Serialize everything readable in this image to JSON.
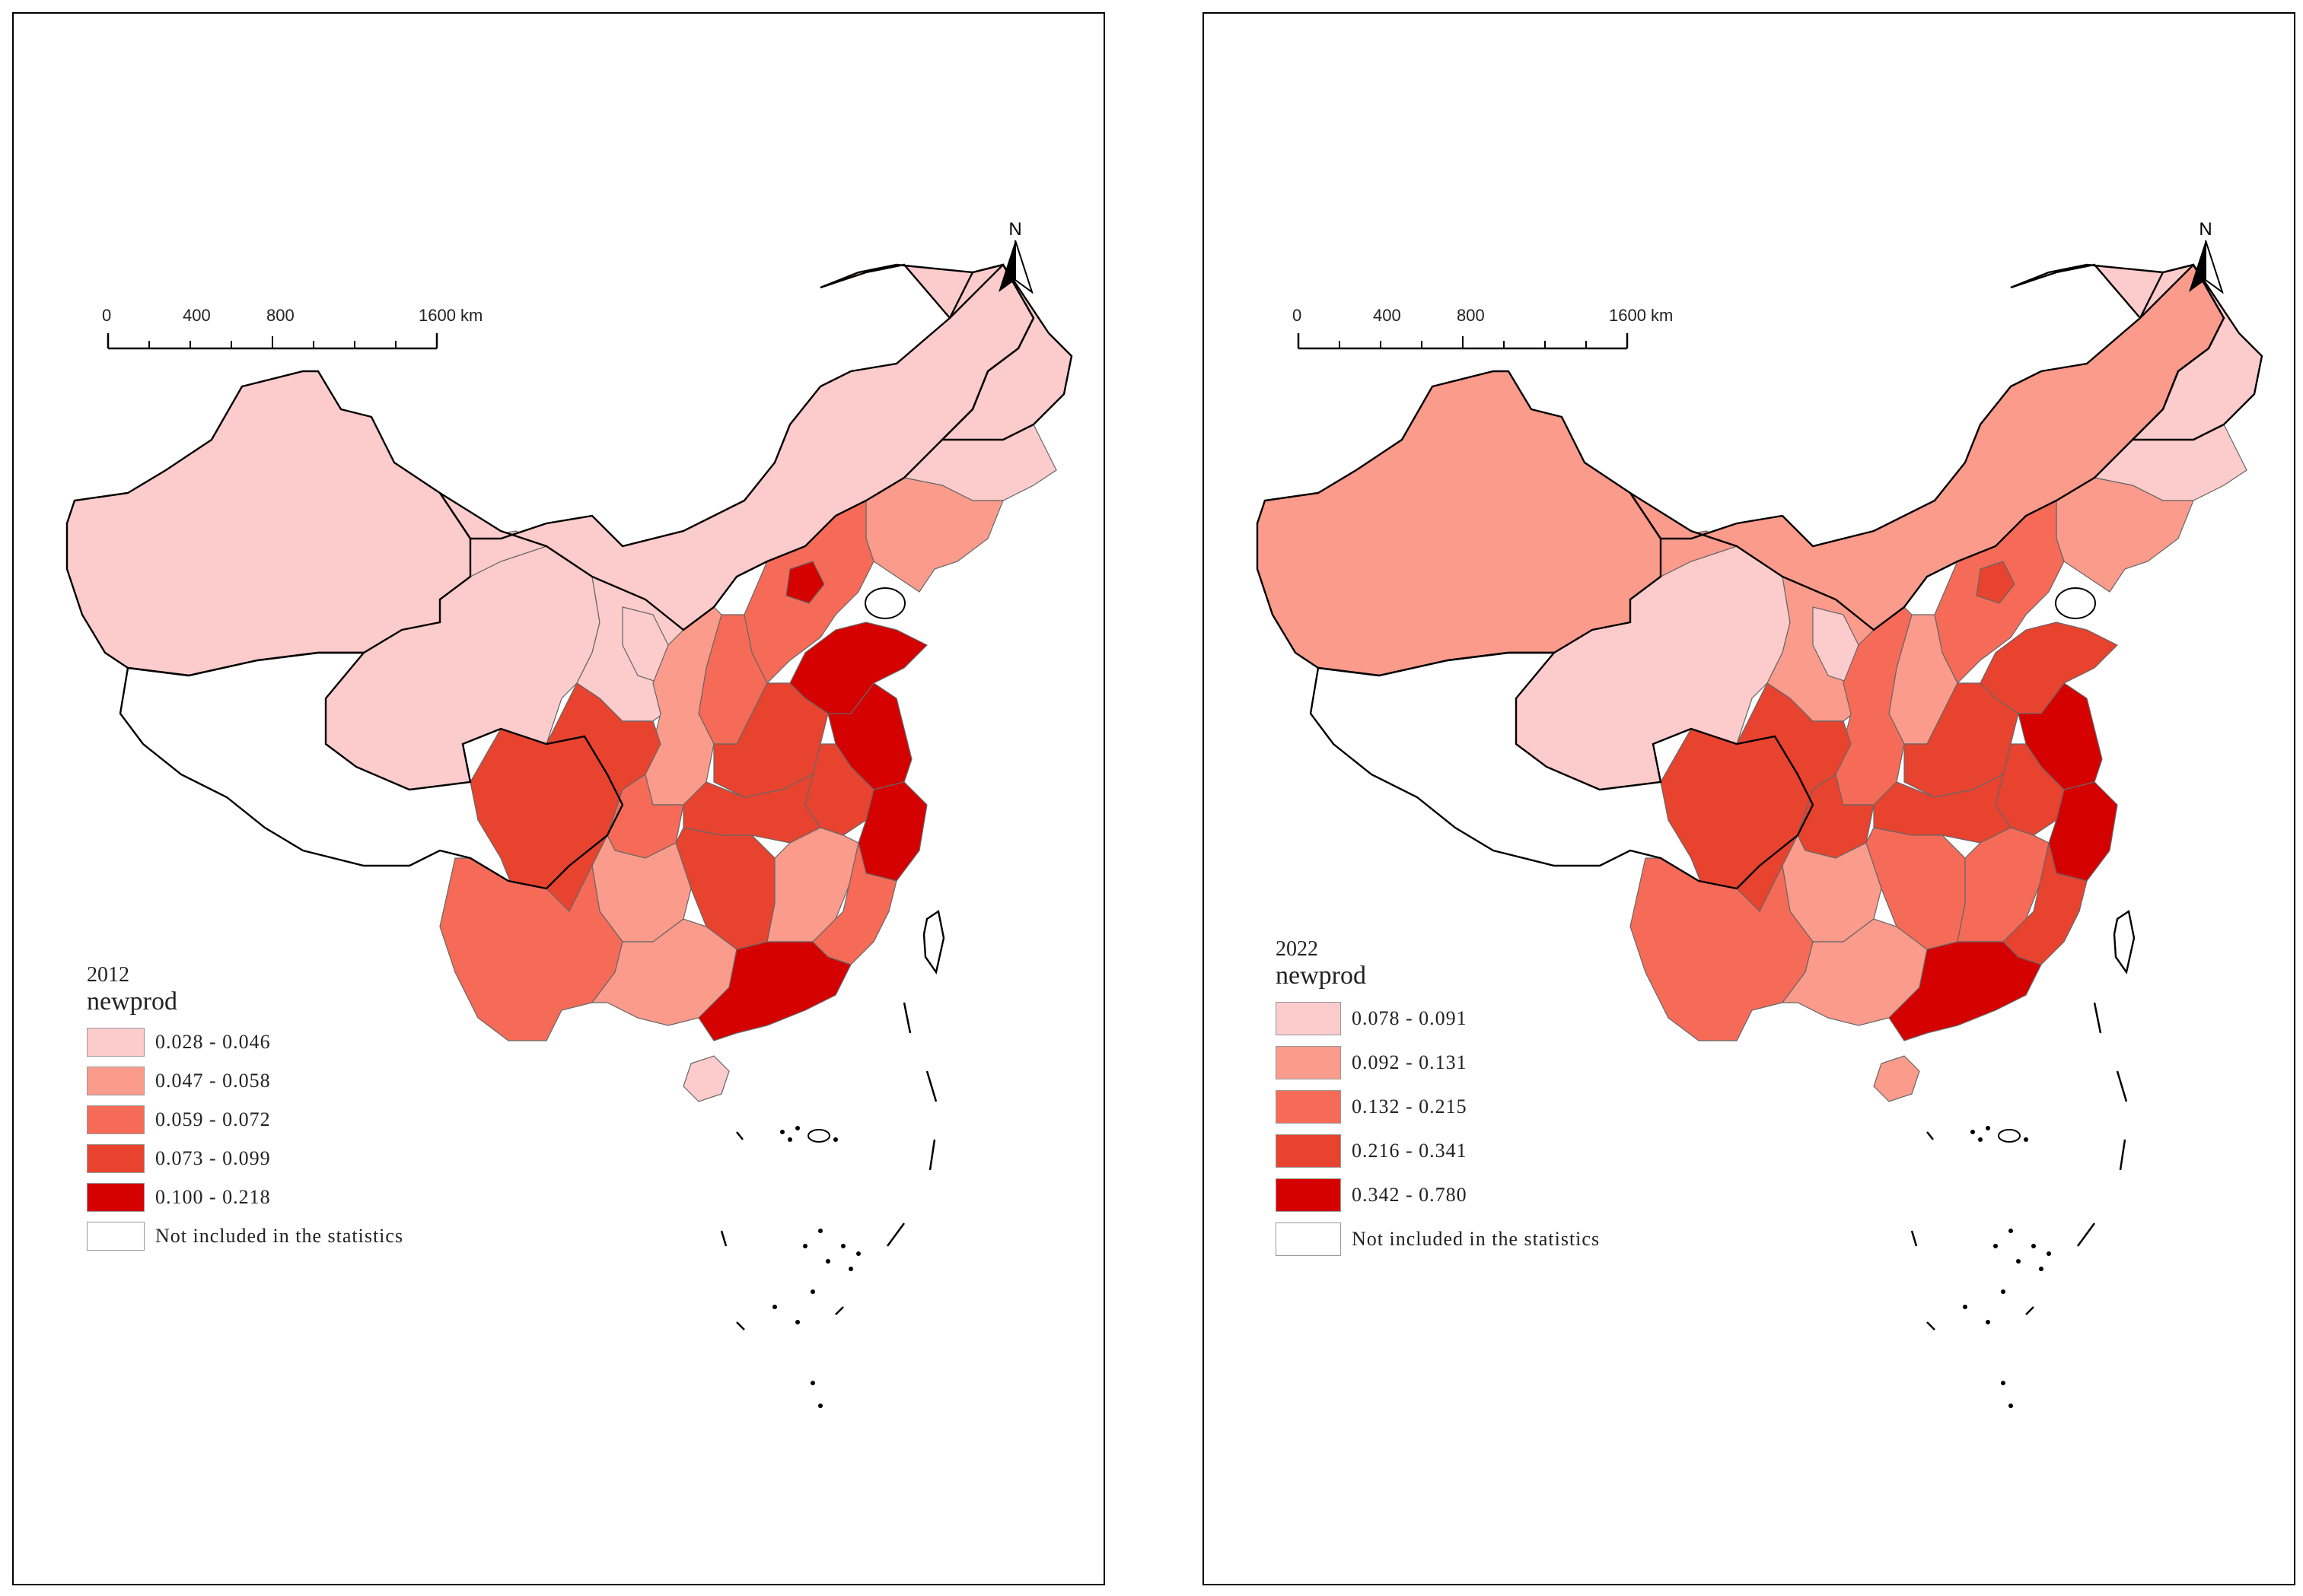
{
  "maps": [
    {
      "year": "2012",
      "field": "newprod",
      "legend": [
        {
          "range": "0.028 - 0.046",
          "color": "#fccbcb"
        },
        {
          "range": "0.047 - 0.058",
          "color": "#fb9b8b"
        },
        {
          "range": "0.059 - 0.072",
          "color": "#f66b58"
        },
        {
          "range": "0.073 - 0.099",
          "color": "#e8432f"
        },
        {
          "range": "0.100 - 0.218",
          "color": "#d50000"
        }
      ],
      "no_data_label": "Not included in the statistics",
      "regions": {
        "xinjiang": 0,
        "tibet": -1,
        "qinghai": 0,
        "gansu": 0,
        "inner_mongolia": 0,
        "ningxia": 0,
        "heilongjiang": 0,
        "jilin": 0,
        "liaoning": 1,
        "beijing": 4,
        "hebei": 2,
        "shanxi": 2,
        "shaanxi": 1,
        "shandong": 4,
        "henan": 3,
        "jiangsu": 4,
        "anhui": 3,
        "zhejiang": 4,
        "sichuan": 3,
        "chongqing": 2,
        "hubei": 3,
        "hunan": 3,
        "jiangxi": 1,
        "fujian": 2,
        "guangdong": 4,
        "guangxi": 1,
        "guizhou": 1,
        "yunnan": 2,
        "hainan": 0
      }
    },
    {
      "year": "2022",
      "field": "newprod",
      "legend": [
        {
          "range": "0.078 - 0.091",
          "color": "#fccbcb"
        },
        {
          "range": "0.092 - 0.131",
          "color": "#fb9b8b"
        },
        {
          "range": "0.132 - 0.215",
          "color": "#f66b58"
        },
        {
          "range": "0.216 - 0.341",
          "color": "#e8432f"
        },
        {
          "range": "0.342 - 0.780",
          "color": "#d50000"
        }
      ],
      "no_data_label": "Not included in the statistics",
      "regions": {
        "xinjiang": 1,
        "tibet": -1,
        "qinghai": 0,
        "gansu": 1,
        "inner_mongolia": 1,
        "ningxia": 0,
        "heilongjiang": 0,
        "jilin": 0,
        "liaoning": 1,
        "beijing": 3,
        "hebei": 2,
        "shanxi": 1,
        "shaanxi": 2,
        "shandong": 3,
        "henan": 3,
        "jiangsu": 4,
        "anhui": 3,
        "zhejiang": 4,
        "sichuan": 3,
        "chongqing": 3,
        "hubei": 3,
        "hunan": 2,
        "jiangxi": 2,
        "fujian": 3,
        "guangdong": 4,
        "guangxi": 1,
        "guizhou": 1,
        "yunnan": 2,
        "hainan": 1
      }
    }
  ],
  "scale": {
    "labels": [
      "0",
      "400",
      "800",
      "1600 km"
    ]
  },
  "north_label": "N",
  "no_data_color": "#ffffff"
}
